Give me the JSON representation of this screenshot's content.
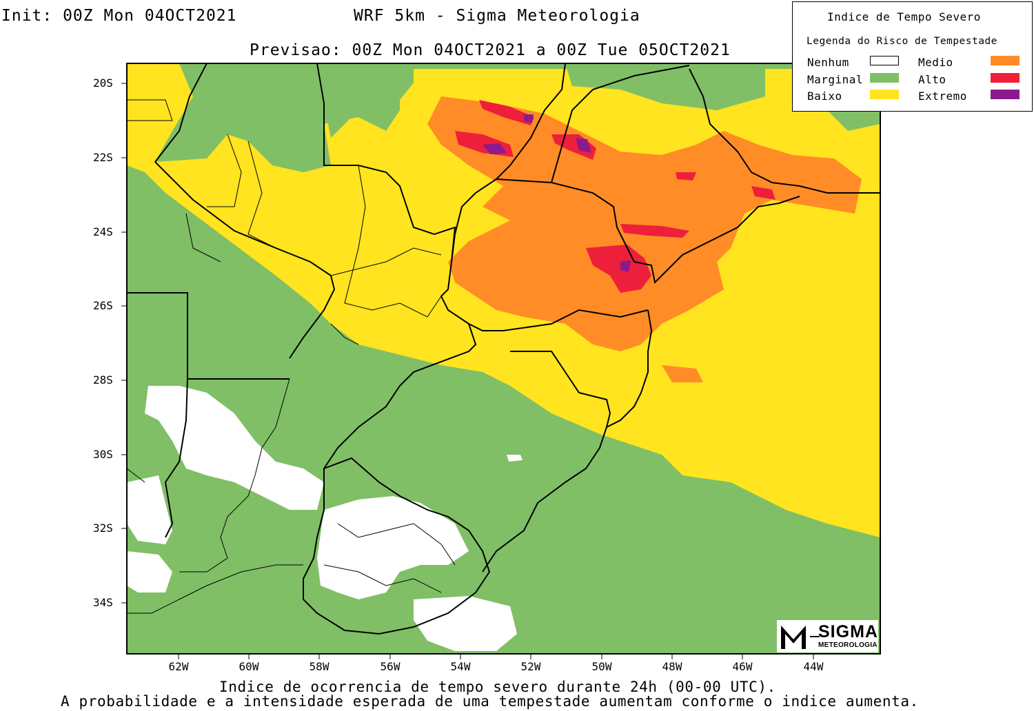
{
  "header": {
    "init": "Init: 00Z Mon 04OCT2021",
    "model": "WRF 5km - Sigma Meteorologia",
    "forecast": "Previsao: 00Z Mon 04OCT2021 a 00Z Tue 05OCT2021"
  },
  "legend": {
    "title": "Indice de Tempo Severo",
    "subtitle": "Legenda do Risco de Tempestade",
    "items": [
      {
        "label": "Nenhum",
        "color": "#ffffff"
      },
      {
        "label": "Marginal",
        "color": "#80bf66"
      },
      {
        "label": "Baixo",
        "color": "#ffe41f"
      },
      {
        "label": "Medio",
        "color": "#ff8c26"
      },
      {
        "label": "Alto",
        "color": "#ee1f3b"
      },
      {
        "label": "Extremo",
        "color": "#8b1a8f"
      }
    ]
  },
  "axes": {
    "lat_labels": [
      "20S",
      "22S",
      "24S",
      "26S",
      "28S",
      "30S",
      "32S",
      "34S"
    ],
    "lon_labels": [
      "62W",
      "60W",
      "58W",
      "56W",
      "54W",
      "52W",
      "50W",
      "48W",
      "46W",
      "44W"
    ]
  },
  "footer": {
    "line1": "Indice de ocorrencia de tempo severo durante 24h (00-00 UTC).",
    "line2": "A probabilidade e a intensidade esperada de uma tempestade aumentam conforme o indice aumenta."
  },
  "logo": {
    "name": "SIGMA",
    "sub": "METEOROLOGIA"
  }
}
